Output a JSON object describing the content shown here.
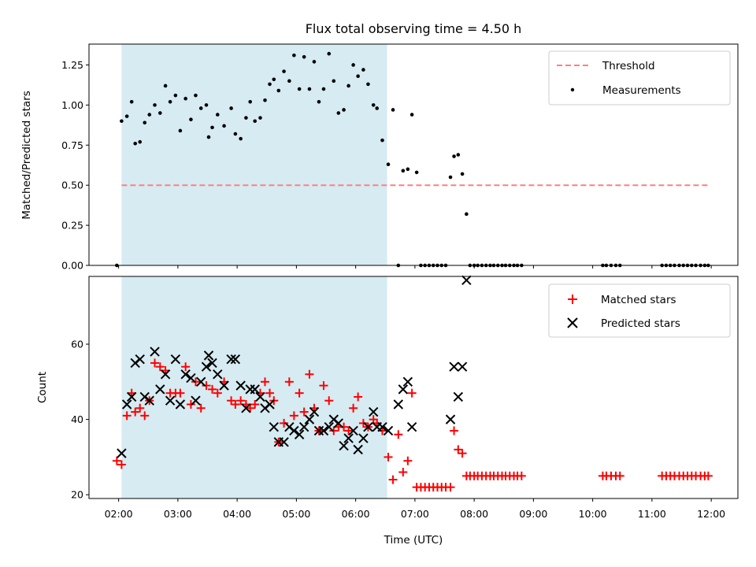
{
  "chart_data": [
    {
      "type": "scatter",
      "title": "Flux total observing time = 4.50 h",
      "xlabel": "",
      "ylabel": "Matched/Predicted stars",
      "x_unit": "hours (UTC)",
      "xlim": [
        1.5,
        12.45
      ],
      "ylim": [
        0,
        1.38
      ],
      "yticks": [
        0.0,
        0.25,
        0.5,
        0.75,
        1.0,
        1.25
      ],
      "ytick_labels": [
        "0.00",
        "0.25",
        "0.50",
        "0.75",
        "1.00",
        "1.25"
      ],
      "shaded_span": [
        2.05,
        6.53
      ],
      "shade_color": "#add8e6",
      "threshold": {
        "name": "Threshold",
        "y": 0.5,
        "x_range": [
          2.05,
          11.95
        ],
        "color": "#ff7f7f",
        "style": "dashed"
      },
      "series": [
        {
          "name": "Measurements",
          "color": "#000000",
          "marker": "dot",
          "x": [
            1.97,
            2.05,
            2.14,
            2.22,
            2.28,
            2.36,
            2.44,
            2.52,
            2.61,
            2.7,
            2.79,
            2.87,
            2.96,
            3.04,
            3.13,
            3.22,
            3.3,
            3.39,
            3.48,
            3.52,
            3.58,
            3.67,
            3.78,
            3.9,
            3.97,
            4.06,
            4.15,
            4.22,
            4.3,
            4.39,
            4.47,
            4.55,
            4.62,
            4.7,
            4.79,
            4.88,
            4.96,
            5.05,
            5.13,
            5.22,
            5.3,
            5.38,
            5.46,
            5.55,
            5.63,
            5.71,
            5.8,
            5.88,
            5.96,
            6.04,
            6.13,
            6.21,
            6.3,
            6.36,
            6.45,
            6.55,
            6.63,
            6.72,
            6.8,
            6.88,
            6.95,
            7.03,
            7.1,
            7.17,
            7.24,
            7.31,
            7.38,
            7.45,
            7.52,
            7.6,
            7.66,
            7.73,
            7.8,
            7.87,
            7.93,
            8.0,
            8.06,
            8.13,
            8.2,
            8.27,
            8.33,
            8.4,
            8.47,
            8.53,
            8.6,
            8.67,
            8.73,
            8.8,
            10.17,
            10.23,
            10.31,
            10.39,
            10.46,
            11.17,
            11.24,
            11.31,
            11.38,
            11.46,
            11.53,
            11.6,
            11.67,
            11.74,
            11.82,
            11.89,
            11.95
          ],
          "y": [
            0.0,
            0.9,
            0.93,
            1.02,
            0.76,
            0.77,
            0.89,
            0.94,
            1.0,
            0.95,
            1.12,
            1.02,
            1.06,
            0.84,
            1.04,
            0.91,
            1.06,
            0.98,
            1.0,
            0.8,
            0.86,
            0.94,
            0.87,
            0.98,
            0.82,
            0.79,
            0.92,
            1.02,
            0.9,
            0.92,
            1.03,
            1.13,
            1.16,
            1.09,
            1.21,
            1.15,
            1.31,
            1.1,
            1.3,
            1.1,
            1.27,
            1.02,
            1.1,
            1.32,
            1.15,
            0.95,
            0.97,
            1.12,
            1.25,
            1.18,
            1.22,
            1.13,
            1.0,
            0.98,
            0.78,
            0.63,
            0.97,
            0.0,
            0.59,
            0.6,
            0.94,
            0.58,
            0.0,
            0.0,
            0.0,
            0.0,
            0.0,
            0.0,
            0.0,
            0.55,
            0.68,
            0.69,
            0.57,
            0.32,
            0.0,
            0.0,
            0.0,
            0.0,
            0.0,
            0.0,
            0.0,
            0.0,
            0.0,
            0.0,
            0.0,
            0.0,
            0.0,
            0.0,
            0.0,
            0.0,
            0.0,
            0.0,
            0.0,
            0.0,
            0.0,
            0.0,
            0.0,
            0.0,
            0.0,
            0.0,
            0.0,
            0.0,
            0.0,
            0.0,
            0.0
          ]
        }
      ],
      "legend": {
        "position": "top-right",
        "entries": [
          "Threshold",
          "Measurements"
        ]
      }
    },
    {
      "type": "scatter",
      "title": "",
      "xlabel": "Time (UTC)",
      "ylabel": "Count",
      "x_unit": "hours (UTC)",
      "xlim": [
        1.5,
        12.45
      ],
      "ylim": [
        19,
        78
      ],
      "yticks": [
        20,
        40,
        60
      ],
      "ytick_labels": [
        "20",
        "40",
        "60"
      ],
      "xticks": [
        2,
        3,
        4,
        5,
        6,
        7,
        8,
        9,
        10,
        11,
        12
      ],
      "xtick_labels": [
        "02:00",
        "03:00",
        "04:00",
        "05:00",
        "06:00",
        "07:00",
        "08:00",
        "09:00",
        "10:00",
        "11:00",
        "12:00"
      ],
      "shaded_span": [
        2.05,
        6.53
      ],
      "shade_color": "#add8e6",
      "series": [
        {
          "name": "Matched stars",
          "color": "#ff0000",
          "marker": "plus",
          "x": [
            1.97,
            2.05,
            2.14,
            2.22,
            2.28,
            2.36,
            2.44,
            2.52,
            2.61,
            2.7,
            2.79,
            2.87,
            2.96,
            3.04,
            3.13,
            3.22,
            3.3,
            3.39,
            3.48,
            3.58,
            3.67,
            3.78,
            3.9,
            3.97,
            4.06,
            4.15,
            4.22,
            4.3,
            4.39,
            4.47,
            4.55,
            4.62,
            4.7,
            4.79,
            4.88,
            4.96,
            5.05,
            5.13,
            5.22,
            5.3,
            5.38,
            5.46,
            5.55,
            5.63,
            5.71,
            5.8,
            5.88,
            5.96,
            6.04,
            6.13,
            6.21,
            6.3,
            6.36,
            6.45,
            6.55,
            6.63,
            6.72,
            6.8,
            6.88,
            6.95,
            7.03,
            7.1,
            7.17,
            7.24,
            7.31,
            7.38,
            7.45,
            7.52,
            7.6,
            7.66,
            7.73,
            7.8,
            7.87,
            7.93,
            8.0,
            8.06,
            8.13,
            8.2,
            8.27,
            8.33,
            8.4,
            8.47,
            8.53,
            8.6,
            8.67,
            8.73,
            8.8,
            10.17,
            10.23,
            10.31,
            10.39,
            10.46,
            11.17,
            11.24,
            11.31,
            11.38,
            11.46,
            11.53,
            11.6,
            11.67,
            11.74,
            11.82,
            11.89,
            11.95
          ],
          "y": [
            29,
            28,
            41,
            47,
            42,
            43,
            41,
            45,
            55,
            54,
            53,
            47,
            47,
            47,
            54,
            44,
            50,
            43,
            49,
            48,
            47,
            50,
            45,
            44,
            45,
            44,
            43,
            44,
            47,
            50,
            47,
            45,
            34,
            39,
            50,
            41,
            47,
            42,
            52,
            43,
            37,
            49,
            45,
            37,
            38,
            38,
            37,
            43,
            46,
            39,
            38,
            40,
            39,
            37,
            30,
            24,
            36,
            26,
            29,
            47,
            22,
            22,
            22,
            22,
            22,
            22,
            22,
            22,
            22,
            37,
            32,
            31,
            25,
            25,
            25,
            25,
            25,
            25,
            25,
            25,
            25,
            25,
            25,
            25,
            25,
            25,
            25,
            25,
            25,
            25,
            25,
            25,
            25,
            25,
            25,
            25,
            25,
            25,
            25,
            25,
            25,
            25,
            25,
            25
          ]
        },
        {
          "name": "Predicted stars",
          "color": "#000000",
          "marker": "x",
          "x": [
            2.05,
            2.14,
            2.22,
            2.28,
            2.36,
            2.44,
            2.52,
            2.61,
            2.7,
            2.79,
            2.87,
            2.96,
            3.04,
            3.13,
            3.22,
            3.3,
            3.39,
            3.48,
            3.52,
            3.58,
            3.67,
            3.78,
            3.9,
            3.97,
            4.06,
            4.15,
            4.22,
            4.3,
            4.39,
            4.47,
            4.55,
            4.62,
            4.7,
            4.79,
            4.88,
            4.96,
            5.05,
            5.13,
            5.22,
            5.3,
            5.38,
            5.46,
            5.55,
            5.63,
            5.71,
            5.8,
            5.88,
            5.96,
            6.04,
            6.13,
            6.21,
            6.3,
            6.36,
            6.45,
            6.55,
            6.72,
            6.8,
            6.88,
            6.95,
            7.6,
            7.66,
            7.73,
            7.8,
            7.87
          ],
          "y": [
            31,
            44,
            46,
            55,
            56,
            46,
            45,
            58,
            48,
            52,
            45,
            56,
            44,
            52,
            51,
            45,
            50,
            54,
            57,
            55,
            52,
            49,
            56,
            56,
            49,
            43,
            48,
            48,
            46,
            43,
            44,
            38,
            34,
            34,
            38,
            37,
            36,
            38,
            40,
            42,
            37,
            37,
            38,
            40,
            39,
            33,
            35,
            37,
            32,
            35,
            38,
            42,
            38,
            38,
            37,
            44,
            48,
            50,
            38,
            40,
            54,
            46,
            54,
            77
          ]
        }
      ],
      "legend": {
        "position": "top-right",
        "entries": [
          "Matched stars",
          "Predicted stars"
        ]
      }
    }
  ]
}
